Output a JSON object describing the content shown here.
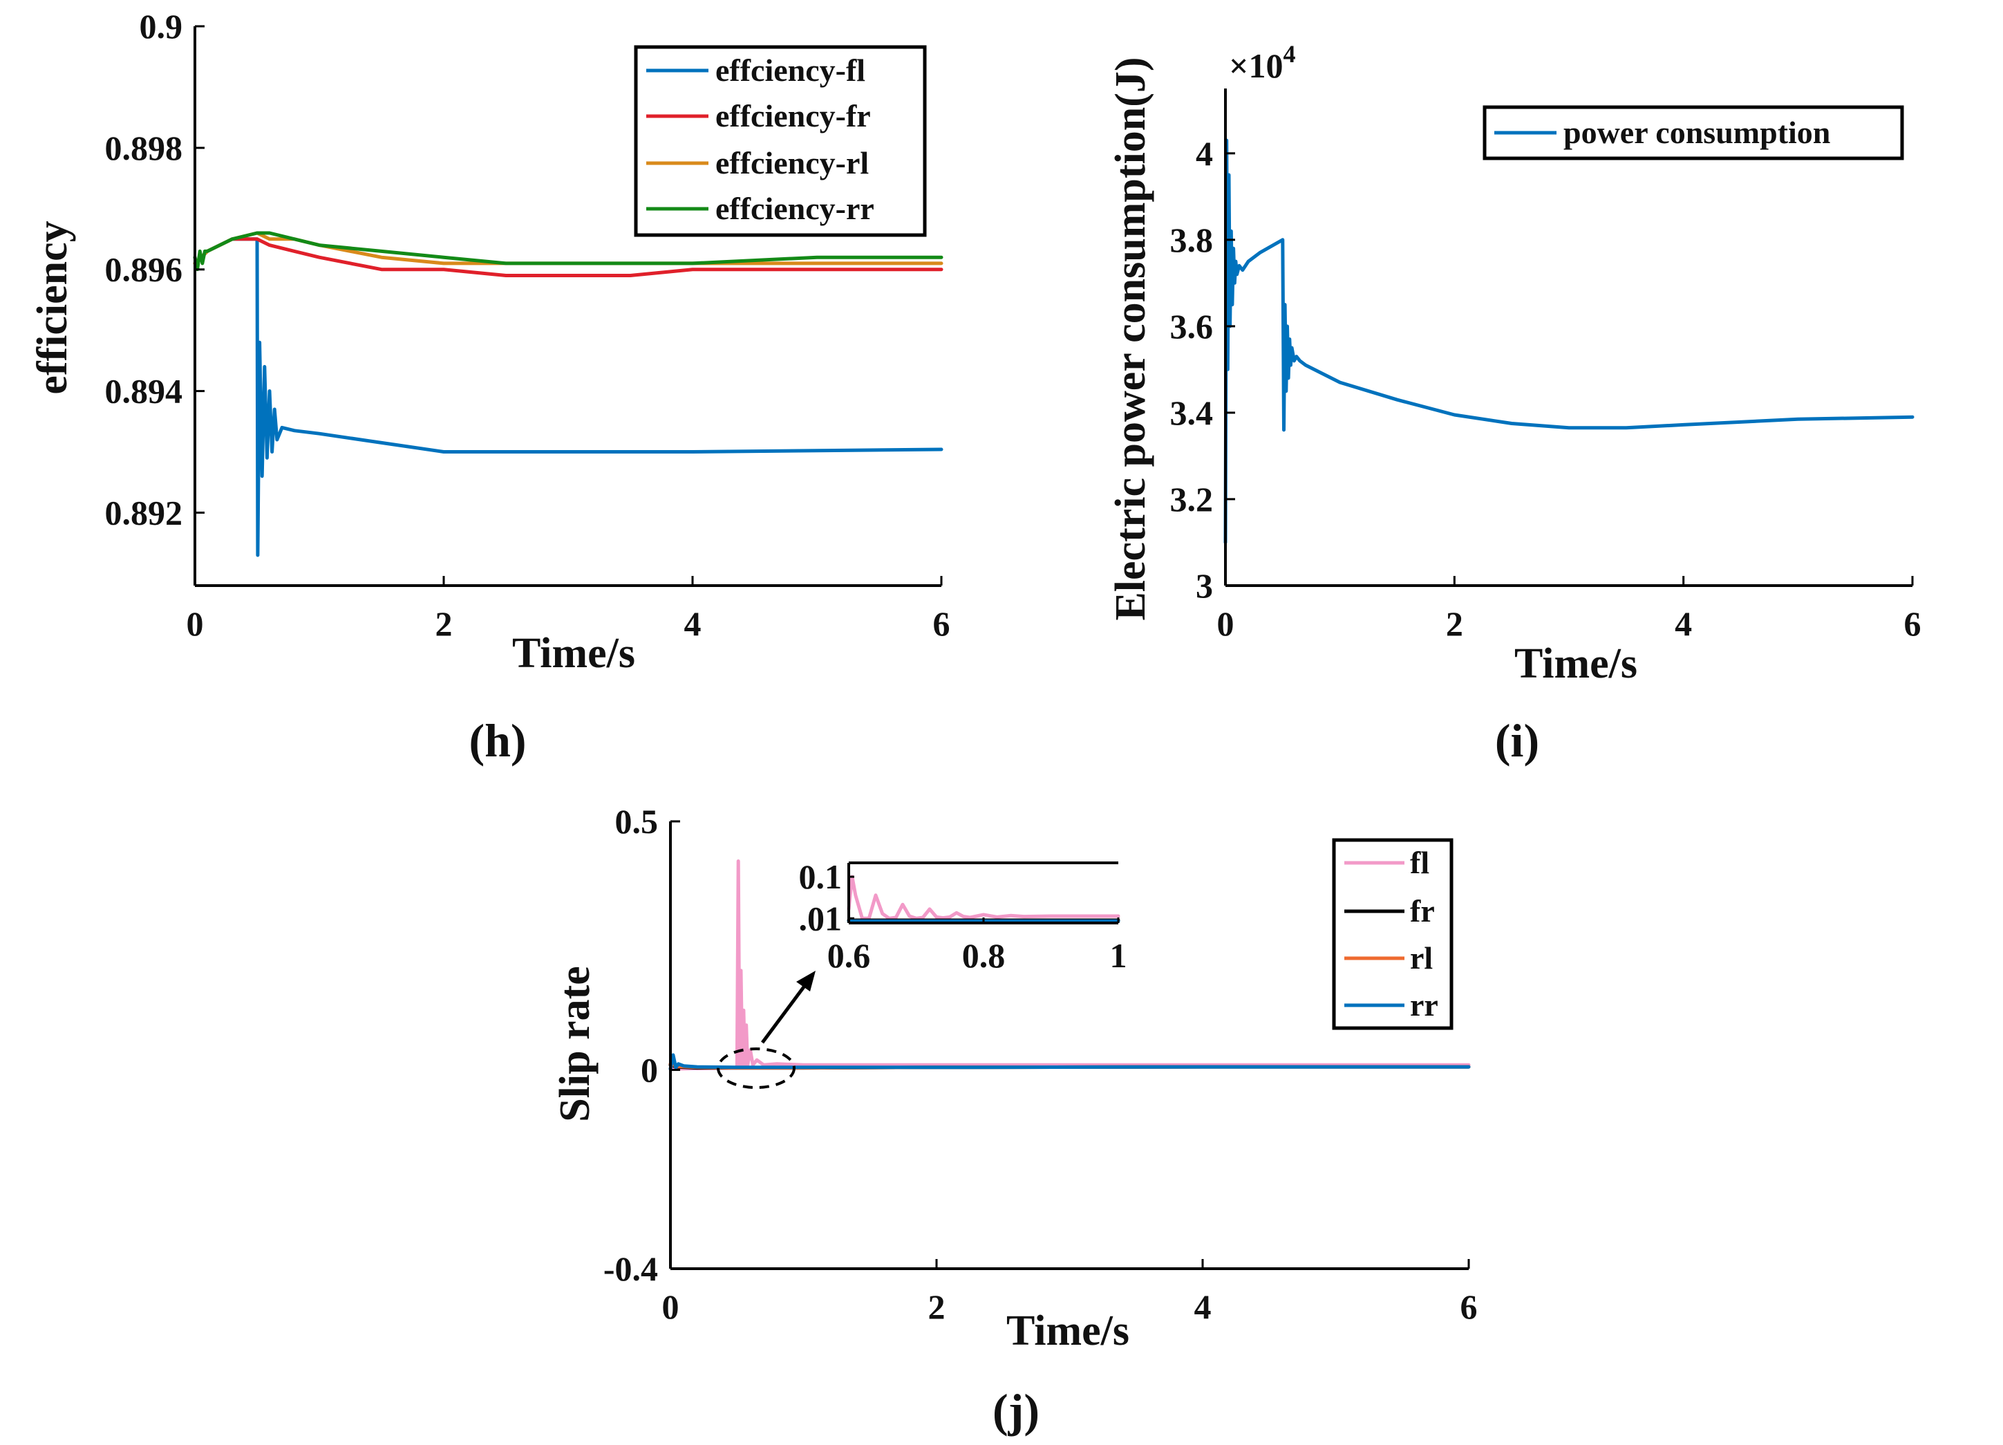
{
  "chart_data": [
    {
      "id": "h",
      "type": "line",
      "panel_label": "(h)",
      "xlabel": "Time/s",
      "ylabel": "efficiency",
      "xlim": [
        0,
        6
      ],
      "ylim": [
        0.8908,
        0.9
      ],
      "xticks": [
        0,
        2,
        4,
        6
      ],
      "yticks": [
        0.892,
        0.894,
        0.896,
        0.898,
        0.9
      ],
      "ytick_labels": [
        "0.892",
        "0.894",
        "0.896",
        "0.898",
        "0.9"
      ],
      "legend_position": "top-right",
      "series": [
        {
          "name": "effciency-fl",
          "color": "#0072BD",
          "x": [
            0,
            0.1,
            0.3,
            0.5,
            0.505,
            0.52,
            0.54,
            0.56,
            0.58,
            0.6,
            0.62,
            0.64,
            0.66,
            0.7,
            0.8,
            1.0,
            1.5,
            2.0,
            2.5,
            3.0,
            3.5,
            4.0,
            5.0,
            6.0
          ],
          "y": [
            0.8961,
            0.8963,
            0.8965,
            0.8965,
            0.8913,
            0.8948,
            0.8926,
            0.8944,
            0.8929,
            0.894,
            0.893,
            0.8937,
            0.8932,
            0.8934,
            0.89335,
            0.8933,
            0.89315,
            0.893,
            0.893,
            0.893,
            0.893,
            0.893,
            0.89302,
            0.89304
          ]
        },
        {
          "name": "effciency-fr",
          "color": "#E0202A",
          "x": [
            0,
            0.1,
            0.3,
            0.5,
            0.6,
            0.8,
            1.0,
            1.5,
            2.0,
            2.5,
            3.0,
            3.5,
            4.0,
            5.0,
            6.0
          ],
          "y": [
            0.8961,
            0.8963,
            0.8965,
            0.8965,
            0.8964,
            0.8963,
            0.8962,
            0.896,
            0.896,
            0.8959,
            0.8959,
            0.8959,
            0.896,
            0.896,
            0.896
          ]
        },
        {
          "name": "effciency-rl",
          "color": "#D98A1B",
          "x": [
            0,
            0.1,
            0.3,
            0.5,
            0.6,
            0.8,
            1.0,
            1.5,
            2.0,
            2.5,
            3.0,
            3.5,
            4.0,
            5.0,
            6.0
          ],
          "y": [
            0.8961,
            0.8963,
            0.8965,
            0.8966,
            0.8965,
            0.8965,
            0.8964,
            0.8962,
            0.8961,
            0.8961,
            0.8961,
            0.8961,
            0.8961,
            0.8961,
            0.8961
          ]
        },
        {
          "name": "effciency-rr",
          "color": "#138A17",
          "x": [
            0,
            0.02,
            0.04,
            0.06,
            0.08,
            0.1,
            0.3,
            0.5,
            0.6,
            0.8,
            1.0,
            1.5,
            2.0,
            2.5,
            3.0,
            3.5,
            4.0,
            5.0,
            6.0
          ],
          "y": [
            0.8962,
            0.896,
            0.8963,
            0.8961,
            0.8963,
            0.8963,
            0.8965,
            0.8966,
            0.8966,
            0.8965,
            0.8964,
            0.8963,
            0.8962,
            0.8961,
            0.8961,
            0.8961,
            0.8961,
            0.8962,
            0.8962
          ]
        }
      ]
    },
    {
      "id": "i",
      "type": "line",
      "panel_label": "(i)",
      "xlabel": "Time/s",
      "ylabel": "Electric power consumption(J)",
      "y_multiplier": "×10",
      "y_multiplier_exp": "4",
      "xlim": [
        0,
        6
      ],
      "ylim": [
        3,
        4.15
      ],
      "xticks": [
        0,
        2,
        4,
        6
      ],
      "yticks": [
        3,
        3.2,
        3.4,
        3.6,
        3.8,
        4
      ],
      "ytick_labels": [
        "3",
        "3.2",
        "3.4",
        "3.6",
        "3.8",
        "4"
      ],
      "legend_position": "top-right",
      "series": [
        {
          "name": "power consumption",
          "color": "#0072BD",
          "x": [
            0,
            0.01,
            0.02,
            0.03,
            0.04,
            0.05,
            0.06,
            0.07,
            0.08,
            0.09,
            0.1,
            0.12,
            0.15,
            0.2,
            0.3,
            0.5,
            0.51,
            0.52,
            0.53,
            0.54,
            0.55,
            0.56,
            0.57,
            0.58,
            0.6,
            0.62,
            0.65,
            0.7,
            1.0,
            1.5,
            2.0,
            2.5,
            3.0,
            3.5,
            4.0,
            5.0,
            6.0
          ],
          "y": [
            3.1,
            4.03,
            3.5,
            3.95,
            3.6,
            3.82,
            3.65,
            3.78,
            3.7,
            3.75,
            3.72,
            3.74,
            3.73,
            3.75,
            3.77,
            3.8,
            3.36,
            3.65,
            3.45,
            3.6,
            3.48,
            3.57,
            3.51,
            3.55,
            3.52,
            3.53,
            3.52,
            3.51,
            3.47,
            3.43,
            3.395,
            3.375,
            3.365,
            3.365,
            3.372,
            3.385,
            3.39
          ]
        }
      ]
    },
    {
      "id": "j",
      "type": "line",
      "panel_label": "(j)",
      "xlabel": "Time/s",
      "ylabel": "Slip rate",
      "xlim": [
        0,
        6
      ],
      "ylim": [
        -0.4,
        0.5
      ],
      "xticks": [
        0,
        2,
        4,
        6
      ],
      "yticks": [
        -0.4,
        0,
        0.5
      ],
      "ytick_labels": [
        "-0.4",
        "0",
        "0.5"
      ],
      "legend_position": "top-right",
      "series": [
        {
          "name": "fl",
          "color": "#F29AC8",
          "x": [
            0,
            0.5,
            0.51,
            0.52,
            0.53,
            0.54,
            0.55,
            0.56,
            0.57,
            0.58,
            0.6,
            0.62,
            0.65,
            0.7,
            0.8,
            1.0,
            2.0,
            4.0,
            6.0
          ],
          "y": [
            0.002,
            0.004,
            0.42,
            0.01,
            0.2,
            0.01,
            0.12,
            0.01,
            0.09,
            0.01,
            0.04,
            0.01,
            0.02,
            0.01,
            0.012,
            0.01,
            0.01,
            0.01,
            0.01
          ]
        },
        {
          "name": "fr",
          "color": "#000000",
          "x": [
            0,
            0.05,
            0.2,
            0.5,
            1.0,
            2.0,
            4.0,
            6.0
          ],
          "y": [
            0.01,
            0.006,
            0.004,
            0.004,
            0.004,
            0.005,
            0.006,
            0.006
          ]
        },
        {
          "name": "rl",
          "color": "#EE6A2F",
          "x": [
            0,
            0.05,
            0.2,
            0.5,
            1.0,
            2.0,
            4.0,
            6.0
          ],
          "y": [
            0.012,
            0.007,
            0.005,
            0.004,
            0.004,
            0.005,
            0.006,
            0.006
          ]
        },
        {
          "name": "rr",
          "color": "#0072BD",
          "x": [
            0,
            0.02,
            0.04,
            0.06,
            0.1,
            0.2,
            0.5,
            1.0,
            2.0,
            4.0,
            6.0
          ],
          "y": [
            0.002,
            0.03,
            0.005,
            0.012,
            0.008,
            0.006,
            0.005,
            0.005,
            0.005,
            0.006,
            0.006
          ]
        }
      ],
      "inset": {
        "xlim": [
          0.6,
          1
        ],
        "ylim": [
          0,
          0.13
        ],
        "xticks": [
          0.6,
          0.8,
          1
        ],
        "xtick_labels": [
          "0.6",
          "0.8",
          "1"
        ],
        "yticks": [
          0.01,
          0.1
        ],
        "ytick_labels": [
          ".01",
          "0.1"
        ],
        "series": [
          {
            "name": "fl",
            "color": "#F29AC8",
            "x": [
              0.6,
              0.605,
              0.61,
              0.62,
              0.63,
              0.64,
              0.65,
              0.66,
              0.67,
              0.68,
              0.69,
              0.7,
              0.71,
              0.72,
              0.73,
              0.74,
              0.75,
              0.76,
              0.77,
              0.78,
              0.8,
              0.82,
              0.84,
              0.86,
              0.9,
              0.95,
              1.0
            ],
            "y": [
              0.03,
              0.1,
              0.06,
              0.01,
              0.01,
              0.06,
              0.02,
              0.01,
              0.012,
              0.04,
              0.015,
              0.01,
              0.012,
              0.03,
              0.013,
              0.011,
              0.013,
              0.022,
              0.014,
              0.012,
              0.018,
              0.013,
              0.016,
              0.014,
              0.015,
              0.015,
              0.015
            ]
          },
          {
            "name": "fr",
            "color": "#000000",
            "x": [
              0.6,
              1.0
            ],
            "y": [
              0.006,
              0.006
            ]
          },
          {
            "name": "rr",
            "color": "#0072BD",
            "x": [
              0.6,
              1.0
            ],
            "y": [
              0.004,
              0.004
            ]
          }
        ]
      }
    }
  ]
}
